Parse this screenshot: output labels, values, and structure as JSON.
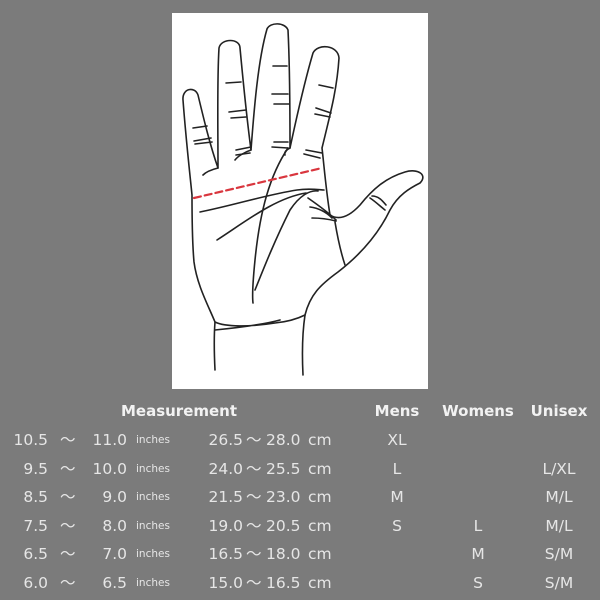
{
  "headers": {
    "measurement": "Measurement",
    "mens": "Mens",
    "womens": "Womens",
    "unisex": "Unisex"
  },
  "separator": "～",
  "inch_unit": "inches",
  "cm_unit": "cm",
  "rows": [
    {
      "in_min": "10.5",
      "in_max": "11.0",
      "cm_min": "26.5",
      "cm_max": "28.0",
      "mens": "XL",
      "womens": "",
      "unisex": ""
    },
    {
      "in_min": "9.5",
      "in_max": "10.0",
      "cm_min": "24.0",
      "cm_max": "25.5",
      "mens": "L",
      "womens": "",
      "unisex": "L/XL"
    },
    {
      "in_min": "8.5",
      "in_max": "9.0",
      "cm_min": "21.5",
      "cm_max": "23.0",
      "mens": "M",
      "womens": "",
      "unisex": "M/L"
    },
    {
      "in_min": "7.5",
      "in_max": "8.0",
      "cm_min": "19.0",
      "cm_max": "20.5",
      "mens": "S",
      "womens": "L",
      "unisex": "M/L"
    },
    {
      "in_min": "6.5",
      "in_max": "7.0",
      "cm_min": "16.5",
      "cm_max": "18.0",
      "mens": "",
      "womens": "M",
      "unisex": "S/M"
    },
    {
      "in_min": "6.0",
      "in_max": "6.5",
      "cm_min": "15.0",
      "cm_max": "16.5",
      "mens": "",
      "womens": "S",
      "unisex": "S/M"
    }
  ],
  "colors": {
    "background": "#7b7b7b",
    "measure_line": "#d9363e",
    "text": "#e6e6e6"
  }
}
